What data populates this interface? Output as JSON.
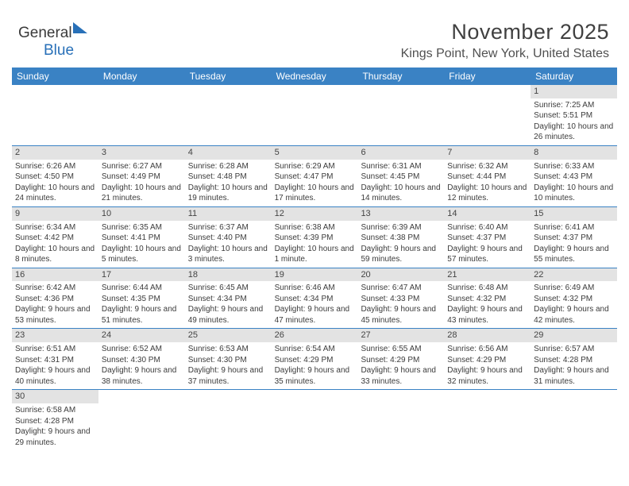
{
  "logo": {
    "text1": "General",
    "text2": "Blue"
  },
  "title": "November 2025",
  "location": "Kings Point, New York, United States",
  "headers": [
    "Sunday",
    "Monday",
    "Tuesday",
    "Wednesday",
    "Thursday",
    "Friday",
    "Saturday"
  ],
  "colors": {
    "header_bg": "#3a82c4",
    "header_text": "#ffffff",
    "daynum_bg": "#e3e3e3",
    "row_border": "#3a82c4",
    "text": "#3b3b3b",
    "logo_blue": "#2870b8",
    "background": "#ffffff"
  },
  "weeks": [
    [
      {
        "n": "",
        "sr": "",
        "ss": "",
        "dl": ""
      },
      {
        "n": "",
        "sr": "",
        "ss": "",
        "dl": ""
      },
      {
        "n": "",
        "sr": "",
        "ss": "",
        "dl": ""
      },
      {
        "n": "",
        "sr": "",
        "ss": "",
        "dl": ""
      },
      {
        "n": "",
        "sr": "",
        "ss": "",
        "dl": ""
      },
      {
        "n": "",
        "sr": "",
        "ss": "",
        "dl": ""
      },
      {
        "n": "1",
        "sr": "Sunrise: 7:25 AM",
        "ss": "Sunset: 5:51 PM",
        "dl": "Daylight: 10 hours and 26 minutes."
      }
    ],
    [
      {
        "n": "2",
        "sr": "Sunrise: 6:26 AM",
        "ss": "Sunset: 4:50 PM",
        "dl": "Daylight: 10 hours and 24 minutes."
      },
      {
        "n": "3",
        "sr": "Sunrise: 6:27 AM",
        "ss": "Sunset: 4:49 PM",
        "dl": "Daylight: 10 hours and 21 minutes."
      },
      {
        "n": "4",
        "sr": "Sunrise: 6:28 AM",
        "ss": "Sunset: 4:48 PM",
        "dl": "Daylight: 10 hours and 19 minutes."
      },
      {
        "n": "5",
        "sr": "Sunrise: 6:29 AM",
        "ss": "Sunset: 4:47 PM",
        "dl": "Daylight: 10 hours and 17 minutes."
      },
      {
        "n": "6",
        "sr": "Sunrise: 6:31 AM",
        "ss": "Sunset: 4:45 PM",
        "dl": "Daylight: 10 hours and 14 minutes."
      },
      {
        "n": "7",
        "sr": "Sunrise: 6:32 AM",
        "ss": "Sunset: 4:44 PM",
        "dl": "Daylight: 10 hours and 12 minutes."
      },
      {
        "n": "8",
        "sr": "Sunrise: 6:33 AM",
        "ss": "Sunset: 4:43 PM",
        "dl": "Daylight: 10 hours and 10 minutes."
      }
    ],
    [
      {
        "n": "9",
        "sr": "Sunrise: 6:34 AM",
        "ss": "Sunset: 4:42 PM",
        "dl": "Daylight: 10 hours and 8 minutes."
      },
      {
        "n": "10",
        "sr": "Sunrise: 6:35 AM",
        "ss": "Sunset: 4:41 PM",
        "dl": "Daylight: 10 hours and 5 minutes."
      },
      {
        "n": "11",
        "sr": "Sunrise: 6:37 AM",
        "ss": "Sunset: 4:40 PM",
        "dl": "Daylight: 10 hours and 3 minutes."
      },
      {
        "n": "12",
        "sr": "Sunrise: 6:38 AM",
        "ss": "Sunset: 4:39 PM",
        "dl": "Daylight: 10 hours and 1 minute."
      },
      {
        "n": "13",
        "sr": "Sunrise: 6:39 AM",
        "ss": "Sunset: 4:38 PM",
        "dl": "Daylight: 9 hours and 59 minutes."
      },
      {
        "n": "14",
        "sr": "Sunrise: 6:40 AM",
        "ss": "Sunset: 4:37 PM",
        "dl": "Daylight: 9 hours and 57 minutes."
      },
      {
        "n": "15",
        "sr": "Sunrise: 6:41 AM",
        "ss": "Sunset: 4:37 PM",
        "dl": "Daylight: 9 hours and 55 minutes."
      }
    ],
    [
      {
        "n": "16",
        "sr": "Sunrise: 6:42 AM",
        "ss": "Sunset: 4:36 PM",
        "dl": "Daylight: 9 hours and 53 minutes."
      },
      {
        "n": "17",
        "sr": "Sunrise: 6:44 AM",
        "ss": "Sunset: 4:35 PM",
        "dl": "Daylight: 9 hours and 51 minutes."
      },
      {
        "n": "18",
        "sr": "Sunrise: 6:45 AM",
        "ss": "Sunset: 4:34 PM",
        "dl": "Daylight: 9 hours and 49 minutes."
      },
      {
        "n": "19",
        "sr": "Sunrise: 6:46 AM",
        "ss": "Sunset: 4:34 PM",
        "dl": "Daylight: 9 hours and 47 minutes."
      },
      {
        "n": "20",
        "sr": "Sunrise: 6:47 AM",
        "ss": "Sunset: 4:33 PM",
        "dl": "Daylight: 9 hours and 45 minutes."
      },
      {
        "n": "21",
        "sr": "Sunrise: 6:48 AM",
        "ss": "Sunset: 4:32 PM",
        "dl": "Daylight: 9 hours and 43 minutes."
      },
      {
        "n": "22",
        "sr": "Sunrise: 6:49 AM",
        "ss": "Sunset: 4:32 PM",
        "dl": "Daylight: 9 hours and 42 minutes."
      }
    ],
    [
      {
        "n": "23",
        "sr": "Sunrise: 6:51 AM",
        "ss": "Sunset: 4:31 PM",
        "dl": "Daylight: 9 hours and 40 minutes."
      },
      {
        "n": "24",
        "sr": "Sunrise: 6:52 AM",
        "ss": "Sunset: 4:30 PM",
        "dl": "Daylight: 9 hours and 38 minutes."
      },
      {
        "n": "25",
        "sr": "Sunrise: 6:53 AM",
        "ss": "Sunset: 4:30 PM",
        "dl": "Daylight: 9 hours and 37 minutes."
      },
      {
        "n": "26",
        "sr": "Sunrise: 6:54 AM",
        "ss": "Sunset: 4:29 PM",
        "dl": "Daylight: 9 hours and 35 minutes."
      },
      {
        "n": "27",
        "sr": "Sunrise: 6:55 AM",
        "ss": "Sunset: 4:29 PM",
        "dl": "Daylight: 9 hours and 33 minutes."
      },
      {
        "n": "28",
        "sr": "Sunrise: 6:56 AM",
        "ss": "Sunset: 4:29 PM",
        "dl": "Daylight: 9 hours and 32 minutes."
      },
      {
        "n": "29",
        "sr": "Sunrise: 6:57 AM",
        "ss": "Sunset: 4:28 PM",
        "dl": "Daylight: 9 hours and 31 minutes."
      }
    ],
    [
      {
        "n": "30",
        "sr": "Sunrise: 6:58 AM",
        "ss": "Sunset: 4:28 PM",
        "dl": "Daylight: 9 hours and 29 minutes."
      },
      {
        "n": "",
        "sr": "",
        "ss": "",
        "dl": ""
      },
      {
        "n": "",
        "sr": "",
        "ss": "",
        "dl": ""
      },
      {
        "n": "",
        "sr": "",
        "ss": "",
        "dl": ""
      },
      {
        "n": "",
        "sr": "",
        "ss": "",
        "dl": ""
      },
      {
        "n": "",
        "sr": "",
        "ss": "",
        "dl": ""
      },
      {
        "n": "",
        "sr": "",
        "ss": "",
        "dl": ""
      }
    ]
  ]
}
